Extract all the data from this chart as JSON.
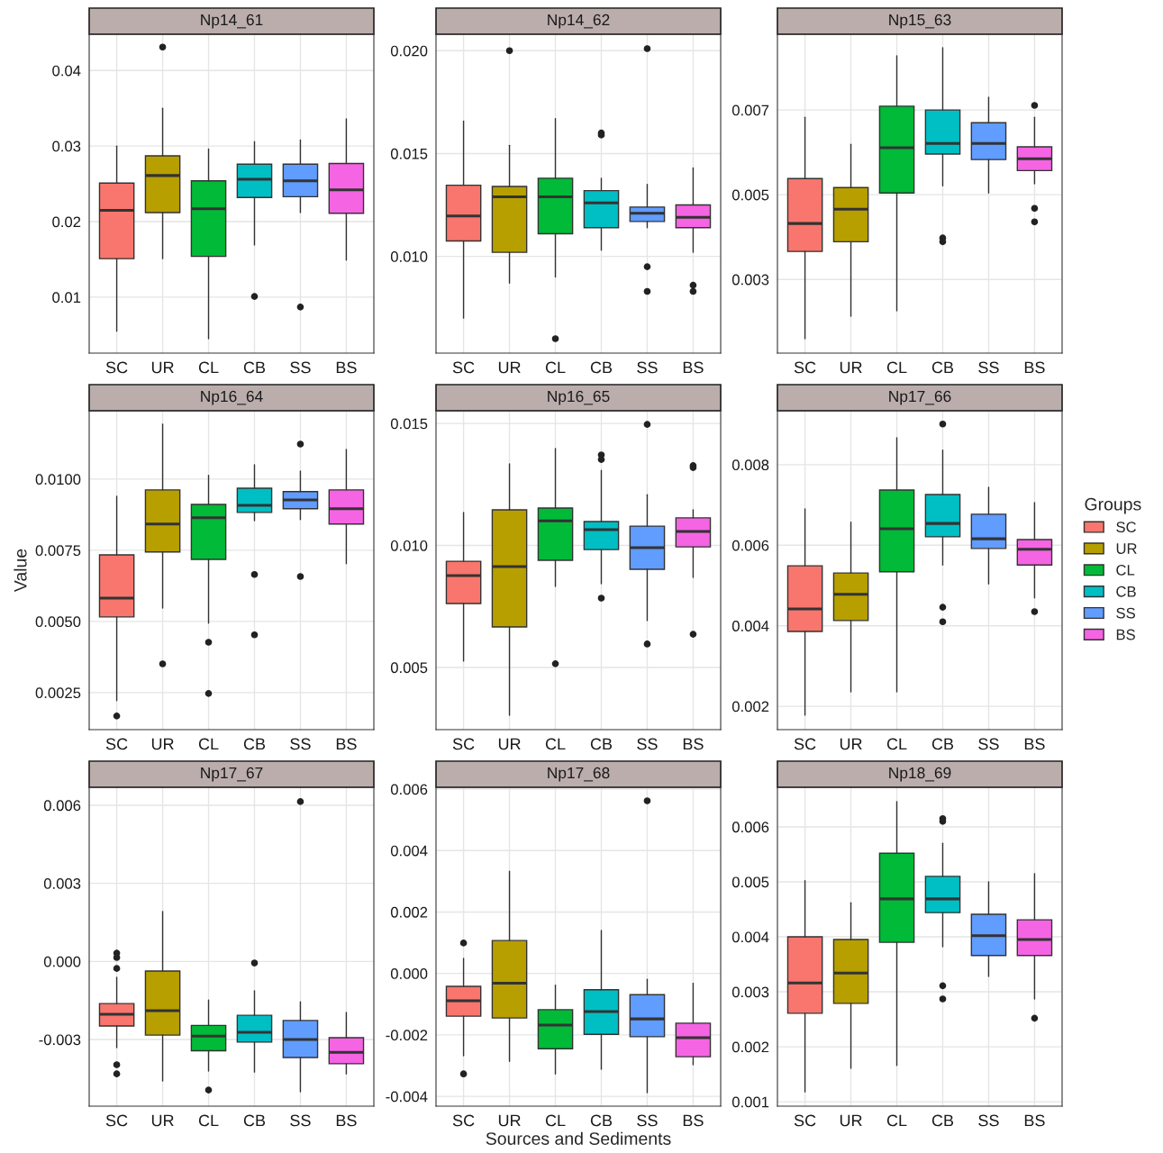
{
  "chart_data": [
    {
      "type": "box",
      "title": "Np14_61",
      "categories": [
        "SC",
        "UR",
        "CL",
        "CB",
        "SS",
        "BS"
      ],
      "colors": [
        "#f8766d",
        "#b79f00",
        "#00ba38",
        "#00bfc4",
        "#619cff",
        "#f564e3"
      ],
      "ylim": [
        0.0026,
        0.0448
      ],
      "yticks": [
        0.01,
        0.02,
        0.03,
        0.04
      ],
      "grid": true,
      "boxes": [
        {
          "low": 0.0055,
          "q1": 0.0151,
          "median": 0.0215,
          "q3": 0.0251,
          "high": 0.03
        },
        {
          "low": 0.0151,
          "q1": 0.0212,
          "median": 0.0261,
          "q3": 0.0287,
          "high": 0.035,
          "outliers": [
            0.0431
          ]
        },
        {
          "low": 0.0045,
          "q1": 0.0154,
          "median": 0.0217,
          "q3": 0.0254,
          "high": 0.0296
        },
        {
          "low": 0.0169,
          "q1": 0.0232,
          "median": 0.0256,
          "q3": 0.0276,
          "high": 0.0306,
          "outliers": [
            0.0101
          ]
        },
        {
          "low": 0.0212,
          "q1": 0.0233,
          "median": 0.0254,
          "q3": 0.0276,
          "high": 0.0308,
          "outliers": [
            0.0087
          ]
        },
        {
          "low": 0.0149,
          "q1": 0.0211,
          "median": 0.0242,
          "q3": 0.0277,
          "high": 0.0336
        }
      ]
    },
    {
      "type": "box",
      "title": "Np14_62",
      "categories": [
        "SC",
        "UR",
        "CL",
        "CB",
        "SS",
        "BS"
      ],
      "colors": [
        "#f8766d",
        "#b79f00",
        "#00ba38",
        "#00bfc4",
        "#619cff",
        "#f564e3"
      ],
      "ylim": [
        0.0053,
        0.0208
      ],
      "yticks": [
        {
          "value": 0.01,
          "label": "0.010"
        },
        {
          "value": 0.015,
          "label": "0.015"
        },
        {
          "value": 0.02,
          "label": "0.020"
        }
      ],
      "grid": true,
      "boxes": [
        {
          "low": 0.007,
          "q1": 0.01075,
          "median": 0.01197,
          "q3": 0.01346,
          "high": 0.01658
        },
        {
          "low": 0.0087,
          "q1": 0.0102,
          "median": 0.0129,
          "q3": 0.0134,
          "high": 0.0154,
          "outliers": [
            0.02
          ]
        },
        {
          "low": 0.009,
          "q1": 0.0111,
          "median": 0.0129,
          "q3": 0.0138,
          "high": 0.0167,
          "outliers": [
            0.006
          ]
        },
        {
          "low": 0.0103,
          "q1": 0.0114,
          "median": 0.0126,
          "q3": 0.0132,
          "high": 0.0138,
          "outliers": [
            0.016,
            0.0159
          ]
        },
        {
          "low": 0.0114,
          "q1": 0.0117,
          "median": 0.0121,
          "q3": 0.0124,
          "high": 0.0135,
          "outliers": [
            0.0201,
            0.0095,
            0.0083
          ]
        },
        {
          "low": 0.0102,
          "q1": 0.0114,
          "median": 0.0119,
          "q3": 0.0125,
          "high": 0.0143,
          "outliers": [
            0.0086,
            0.0083
          ]
        }
      ]
    },
    {
      "type": "box",
      "title": "Np15_63",
      "categories": [
        "SC",
        "UR",
        "CL",
        "CB",
        "SS",
        "BS"
      ],
      "colors": [
        "#f8766d",
        "#b79f00",
        "#00ba38",
        "#00bfc4",
        "#619cff",
        "#f564e3"
      ],
      "ylim": [
        0.00126,
        0.00879
      ],
      "yticks": [
        0.003,
        0.005,
        0.007
      ],
      "grid": true,
      "boxes": [
        {
          "low": 0.0016,
          "q1": 0.00366,
          "median": 0.00432,
          "q3": 0.00538,
          "high": 0.00683
        },
        {
          "low": 0.00213,
          "q1": 0.00389,
          "median": 0.00466,
          "q3": 0.00517,
          "high": 0.00619
        },
        {
          "low": 0.00226,
          "q1": 0.00504,
          "median": 0.00611,
          "q3": 0.00709,
          "high": 0.00828
        },
        {
          "low": 0.00521,
          "q1": 0.00596,
          "median": 0.00621,
          "q3": 0.007,
          "high": 0.00847,
          "outliers": [
            0.00398,
            0.00389
          ]
        },
        {
          "low": 0.00504,
          "q1": 0.00583,
          "median": 0.00621,
          "q3": 0.0067,
          "high": 0.0073
        },
        {
          "low": 0.00526,
          "q1": 0.00557,
          "median": 0.00585,
          "q3": 0.00613,
          "high": 0.00683,
          "outliers": [
            0.00711,
            0.00468,
            0.00436
          ]
        }
      ]
    },
    {
      "type": "box",
      "title": "Np16_64",
      "ylabel": "Value",
      "categories": [
        "SC",
        "UR",
        "CL",
        "CB",
        "SS",
        "BS"
      ],
      "colors": [
        "#f8766d",
        "#b79f00",
        "#00ba38",
        "#00bfc4",
        "#619cff",
        "#f564e3"
      ],
      "ylim": [
        0.0012,
        0.0124
      ],
      "yticks": [
        {
          "value": 0.0025,
          "label": "0.0025"
        },
        {
          "value": 0.005,
          "label": "0.0050"
        },
        {
          "value": 0.0075,
          "label": "0.0075"
        },
        {
          "value": 0.01,
          "label": "0.0100"
        }
      ],
      "grid": true,
      "boxes": [
        {
          "low": 0.00222,
          "q1": 0.00516,
          "median": 0.00582,
          "q3": 0.00734,
          "high": 0.0094,
          "outliers": [
            0.00168
          ]
        },
        {
          "low": 0.00547,
          "q1": 0.00744,
          "median": 0.00842,
          "q3": 0.00962,
          "high": 0.01193,
          "outliers": [
            0.00351
          ]
        },
        {
          "low": 0.00494,
          "q1": 0.00718,
          "median": 0.00864,
          "q3": 0.00911,
          "high": 0.01013,
          "outliers": [
            0.00427,
            0.00247
          ]
        },
        {
          "low": 0.00854,
          "q1": 0.00883,
          "median": 0.00908,
          "q3": 0.00968,
          "high": 0.0105,
          "outliers": [
            0.00665,
            0.00453
          ]
        },
        {
          "low": 0.00858,
          "q1": 0.00896,
          "median": 0.00927,
          "q3": 0.00956,
          "high": 0.01028,
          "outliers": [
            0.01123,
            0.00658
          ]
        },
        {
          "low": 0.00703,
          "q1": 0.00842,
          "median": 0.00896,
          "q3": 0.00962,
          "high": 0.01104
        }
      ]
    },
    {
      "type": "box",
      "title": "Np16_65",
      "categories": [
        "SC",
        "UR",
        "CL",
        "CB",
        "SS",
        "BS"
      ],
      "colors": [
        "#f8766d",
        "#b79f00",
        "#00ba38",
        "#00bfc4",
        "#619cff",
        "#f564e3"
      ],
      "ylim": [
        0.00245,
        0.01552
      ],
      "yticks": [
        0.005,
        {
          "value": 0.01,
          "label": "0.010"
        },
        0.015
      ],
      "grid": true,
      "boxes": [
        {
          "low": 0.00526,
          "q1": 0.00762,
          "median": 0.00876,
          "q3": 0.00935,
          "high": 0.01135
        },
        {
          "low": 0.00304,
          "q1": 0.00666,
          "median": 0.00913,
          "q3": 0.01146,
          "high": 0.01334
        },
        {
          "low": 0.00832,
          "q1": 0.00939,
          "median": 0.01101,
          "q3": 0.01153,
          "high": 0.01397,
          "outliers": [
            0.00515
          ]
        },
        {
          "low": 0.00843,
          "q1": 0.00983,
          "median": 0.01065,
          "q3": 0.01098,
          "high": 0.01308,
          "outliers": [
            0.01371,
            0.01352,
            0.00784
          ]
        },
        {
          "low": 0.00692,
          "q1": 0.00902,
          "median": 0.00991,
          "q3": 0.01079,
          "high": 0.01208,
          "outliers": [
            0.01496,
            0.00596
          ]
        },
        {
          "low": 0.00869,
          "q1": 0.00994,
          "median": 0.01057,
          "q3": 0.01113,
          "high": 0.01146,
          "outliers": [
            0.01327,
            0.01319,
            0.00636
          ]
        }
      ]
    },
    {
      "type": "box",
      "title": "Np17_66",
      "legend": "right",
      "legend_title": "Groups",
      "categories": [
        "SC",
        "UR",
        "CL",
        "CB",
        "SS",
        "BS"
      ],
      "ylim": [
        0.00142,
        0.00934
      ],
      "yticks": [
        0.002,
        0.004,
        0.006,
        0.008
      ],
      "grid": true,
      "series": [
        {
          "name": "SC",
          "color": "#f8766d",
          "boxes": [
            {
              "low": 0.00178,
              "q1": 0.00386,
              "median": 0.00442,
              "q3": 0.00549,
              "high": 0.0069
            },
            null,
            null,
            null,
            null,
            null
          ]
        },
        {
          "name": "UR",
          "color": "#b79f00",
          "boxes": [
            null,
            {
              "low": 0.00236,
              "q1": 0.00413,
              "median": 0.00478,
              "q3": 0.00531,
              "high": 0.00657
            },
            null,
            null,
            null,
            null
          ]
        },
        {
          "name": "CL",
          "color": "#00ba38",
          "boxes": [
            null,
            null,
            {
              "low": 0.00236,
              "q1": 0.00534,
              "median": 0.00641,
              "q3": 0.00737,
              "high": 0.00867
            },
            null,
            null,
            null
          ]
        },
        {
          "name": "CB",
          "color": "#00bfc4",
          "boxes": [
            null,
            null,
            null,
            {
              "low": 0.00551,
              "q1": 0.00621,
              "median": 0.00654,
              "q3": 0.00726,
              "high": 0.00836,
              "outliers": [
                0.00901,
                0.00446,
                0.0041
              ]
            },
            null,
            null
          ]
        },
        {
          "name": "SS",
          "color": "#619cff",
          "boxes": [
            null,
            null,
            null,
            null,
            {
              "low": 0.00504,
              "q1": 0.00592,
              "median": 0.00616,
              "q3": 0.00677,
              "high": 0.00744
            },
            null
          ]
        },
        {
          "name": "BS",
          "color": "#f564e3",
          "boxes": [
            null,
            null,
            null,
            null,
            null,
            {
              "low": 0.00469,
              "q1": 0.00551,
              "median": 0.0059,
              "q3": 0.00614,
              "high": 0.00706,
              "outliers": [
                0.00435
              ]
            }
          ]
        }
      ]
    },
    {
      "type": "box",
      "title": "Np17_67",
      "categories": [
        "SC",
        "UR",
        "CL",
        "CB",
        "SS",
        "BS"
      ],
      "colors": [
        "#f8766d",
        "#b79f00",
        "#00ba38",
        "#00bfc4",
        "#619cff",
        "#f564e3"
      ],
      "ylim": [
        -0.00556,
        0.00669
      ],
      "yticks": [
        {
          "value": -0.003,
          "label": "-0.003"
        },
        {
          "value": 0,
          "label": "0.000"
        },
        {
          "value": 0.003,
          "label": "0.003"
        },
        {
          "value": 0.006,
          "label": "0.006"
        }
      ],
      "grid": true,
      "boxes": [
        {
          "low": -0.00331,
          "q1": -0.00248,
          "median": -0.00203,
          "q3": -0.00162,
          "high": -0.00061,
          "outliers": [
            0.00032,
            0.00015,
            -0.00027,
            -0.00397,
            -0.00432
          ]
        },
        {
          "low": -0.00459,
          "q1": -0.00283,
          "median": -0.00189,
          "q3": -0.00037,
          "high": 0.00192
        },
        {
          "low": -0.00421,
          "q1": -0.00343,
          "median": -0.00287,
          "q3": -0.00246,
          "high": -0.00148,
          "outliers": [
            -0.00494
          ]
        },
        {
          "low": -0.00425,
          "q1": -0.0031,
          "median": -0.00272,
          "q3": -0.00207,
          "high": -0.00113,
          "outliers": [
            -6e-05
          ]
        },
        {
          "low": -0.00501,
          "q1": -0.00369,
          "median": -0.003,
          "q3": -0.00227,
          "high": -0.00155,
          "outliers": [
            0.00614
          ]
        },
        {
          "low": -0.00432,
          "q1": -0.00393,
          "median": -0.00349,
          "q3": -0.00293,
          "high": -0.00196
        }
      ]
    },
    {
      "type": "box",
      "title": "Np17_68",
      "xlabel": "Sources and Sediments",
      "categories": [
        "SC",
        "UR",
        "CL",
        "CB",
        "SS",
        "BS"
      ],
      "colors": [
        "#f8766d",
        "#b79f00",
        "#00ba38",
        "#00bfc4",
        "#619cff",
        "#f564e3"
      ],
      "ylim": [
        -0.00432,
        0.00606
      ],
      "yticks": [
        {
          "value": -0.004,
          "label": "-0.004"
        },
        {
          "value": -0.002,
          "label": "-0.002"
        },
        {
          "value": 0,
          "label": "0.000"
        },
        {
          "value": 0.002,
          "label": "0.002"
        },
        {
          "value": 0.004,
          "label": "0.004"
        },
        {
          "value": 0.006,
          "label": "0.006"
        }
      ],
      "grid": true,
      "boxes": [
        {
          "low": -0.00268,
          "q1": -0.00139,
          "median": -0.00089,
          "q3": -0.00042,
          "high": 0.00049,
          "outliers": [
            0.00099,
            -0.00327
          ]
        },
        {
          "low": -0.00286,
          "q1": -0.00145,
          "median": -0.00032,
          "q3": 0.00107,
          "high": 0.00333
        },
        {
          "low": -0.00327,
          "q1": -0.00245,
          "median": -0.00168,
          "q3": -0.00118,
          "high": -0.00038
        },
        {
          "low": -0.00312,
          "q1": -0.00198,
          "median": -0.00124,
          "q3": -0.00053,
          "high": 0.0014
        },
        {
          "low": -0.00388,
          "q1": -0.00206,
          "median": -0.00148,
          "q3": -0.00069,
          "high": -0.00019,
          "outliers": [
            0.00562
          ]
        },
        {
          "low": -0.00297,
          "q1": -0.00271,
          "median": -0.00209,
          "q3": -0.00162,
          "high": -0.00032
        }
      ]
    },
    {
      "type": "box",
      "title": "Np18_69",
      "categories": [
        "SC",
        "UR",
        "CL",
        "CB",
        "SS",
        "BS"
      ],
      "colors": [
        "#f8766d",
        "#b79f00",
        "#00ba38",
        "#00bfc4",
        "#619cff",
        "#f564e3"
      ],
      "ylim": [
        0.00092,
        0.00672
      ],
      "yticks": [
        0.001,
        0.002,
        0.003,
        0.004,
        0.005,
        0.006
      ],
      "grid": true,
      "boxes": [
        {
          "low": 0.00118,
          "q1": 0.00261,
          "median": 0.00316,
          "q3": 0.004,
          "high": 0.00502
        },
        {
          "low": 0.00161,
          "q1": 0.00279,
          "median": 0.00334,
          "q3": 0.00395,
          "high": 0.00462
        },
        {
          "low": 0.00166,
          "q1": 0.0039,
          "median": 0.00469,
          "q3": 0.00552,
          "high": 0.00646
        },
        {
          "low": 0.00382,
          "q1": 0.00444,
          "median": 0.00469,
          "q3": 0.0051,
          "high": 0.0057,
          "outliers": [
            0.00615,
            0.0061,
            0.00311,
            0.00287
          ]
        },
        {
          "low": 0.00328,
          "q1": 0.00366,
          "median": 0.00402,
          "q3": 0.00441,
          "high": 0.005
        },
        {
          "low": 0.00287,
          "q1": 0.00366,
          "median": 0.00395,
          "q3": 0.00431,
          "high": 0.00515,
          "outliers": [
            0.00252
          ]
        }
      ]
    }
  ]
}
